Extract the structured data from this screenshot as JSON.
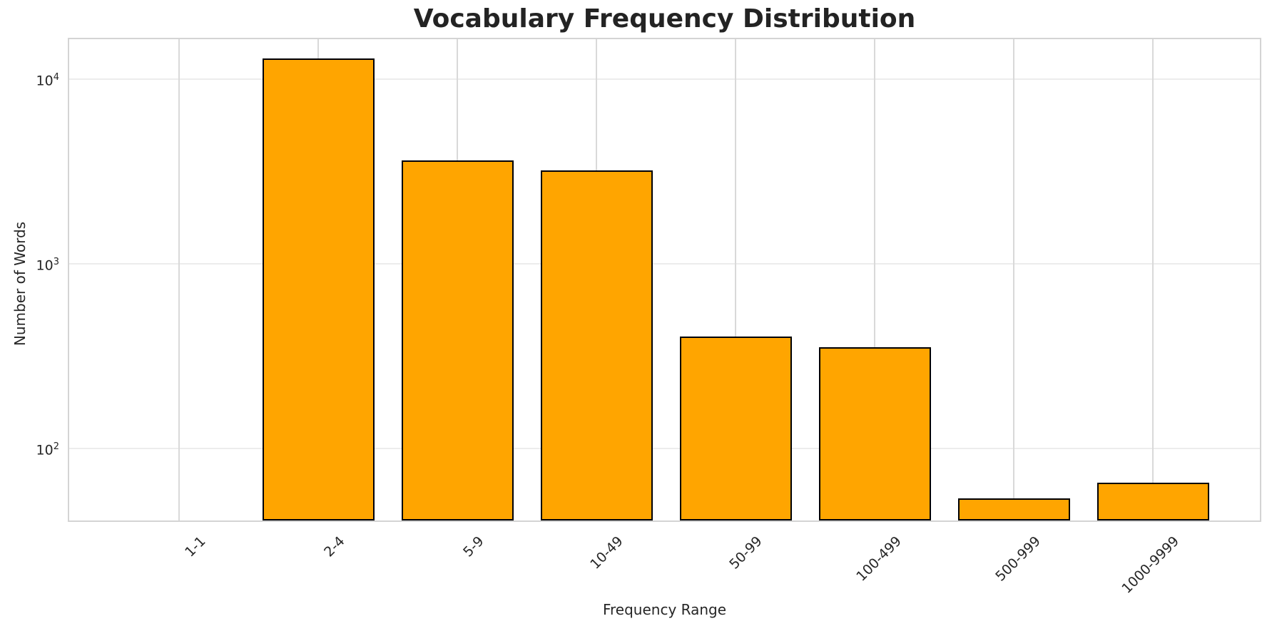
{
  "chart_data": {
    "type": "bar",
    "title": "Vocabulary Frequency Distribution",
    "xlabel": "Frequency Range",
    "ylabel": "Number of Words",
    "categories": [
      "1-1",
      "2-4",
      "5-9",
      "10-49",
      "50-99",
      "100-499",
      "500-999",
      "1000-9999"
    ],
    "values": [
      0,
      12500,
      3500,
      3100,
      390,
      340,
      52,
      63
    ],
    "yscale": "log",
    "ylim": [
      40,
      16500
    ],
    "y_tick_exponents": [
      2,
      3,
      4
    ],
    "grid": true,
    "legend_position": "none",
    "bar_color": "#FFA500",
    "bar_edge_color": "#000000",
    "text_color": "#262626",
    "grid_color_horizontal": "#ececec",
    "grid_color_vertical": "#d9d9d9",
    "spine_color": "#d4d4d4",
    "background_color": "#ffffff"
  }
}
